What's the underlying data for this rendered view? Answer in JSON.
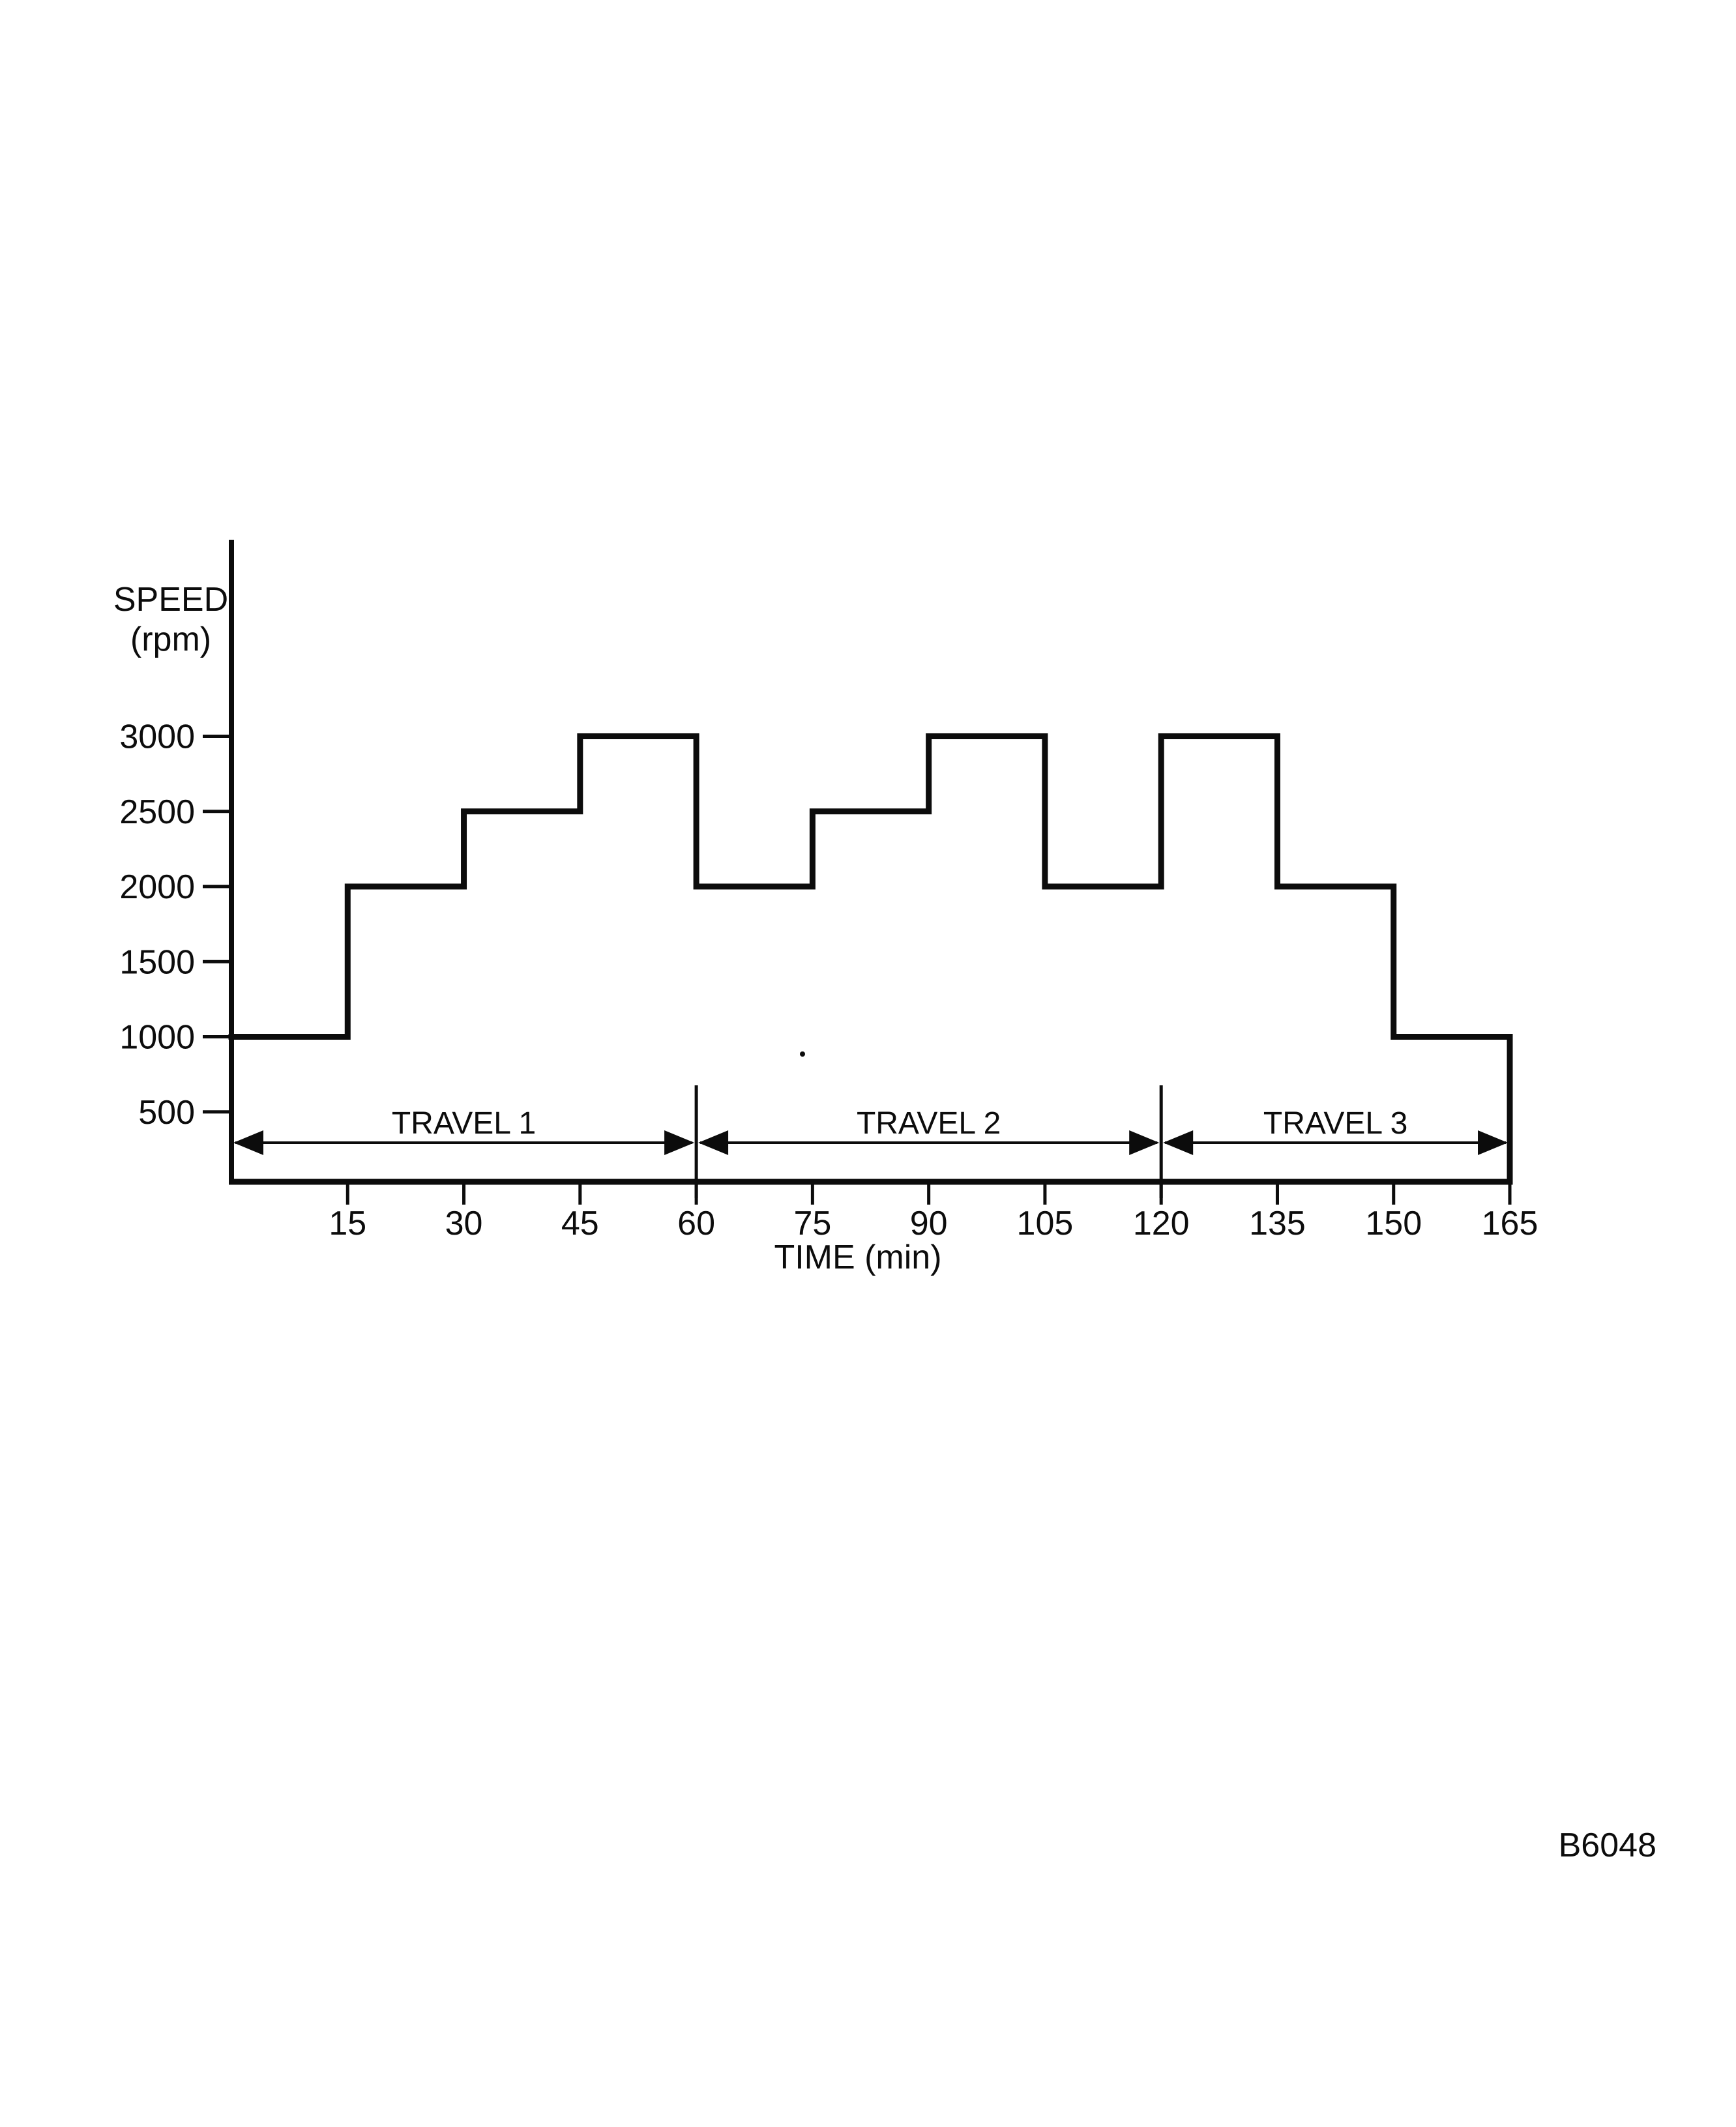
{
  "figure_number": "B6048",
  "chart_data": {
    "type": "line",
    "subtype": "step",
    "title": "",
    "ylabel_line1": "SPEED",
    "ylabel_line2": "(rpm)",
    "xlabel": "TIME (min)",
    "y_unit": "rpm",
    "x_unit": "min",
    "xlim": [
      0,
      165
    ],
    "ylim": [
      0,
      3500
    ],
    "grid": false,
    "line_color": "#0c0c0c",
    "y_ticks": [
      3000,
      2500,
      2000,
      1500,
      1000,
      500
    ],
    "x_ticks": [
      15,
      30,
      45,
      60,
      75,
      90,
      105,
      120,
      135,
      150,
      165
    ],
    "segments": [
      {
        "t_start": 0,
        "t_end": 15,
        "rpm": 1000
      },
      {
        "t_start": 15,
        "t_end": 30,
        "rpm": 2000
      },
      {
        "t_start": 30,
        "t_end": 45,
        "rpm": 2500
      },
      {
        "t_start": 45,
        "t_end": 60,
        "rpm": 3000
      },
      {
        "t_start": 60,
        "t_end": 75,
        "rpm": 2000
      },
      {
        "t_start": 75,
        "t_end": 90,
        "rpm": 2500
      },
      {
        "t_start": 90,
        "t_end": 105,
        "rpm": 3000
      },
      {
        "t_start": 105,
        "t_end": 120,
        "rpm": 2000
      },
      {
        "t_start": 120,
        "t_end": 135,
        "rpm": 3000
      },
      {
        "t_start": 135,
        "t_end": 150,
        "rpm": 2000
      },
      {
        "t_start": 150,
        "t_end": 165,
        "rpm": 1000
      }
    ],
    "intervals": [
      {
        "label": "TRAVEL 1",
        "t_start": 0,
        "t_end": 60
      },
      {
        "label": "TRAVEL 2",
        "t_start": 60,
        "t_end": 120
      },
      {
        "label": "TRAVEL 3",
        "t_start": 120,
        "t_end": 165
      }
    ]
  }
}
